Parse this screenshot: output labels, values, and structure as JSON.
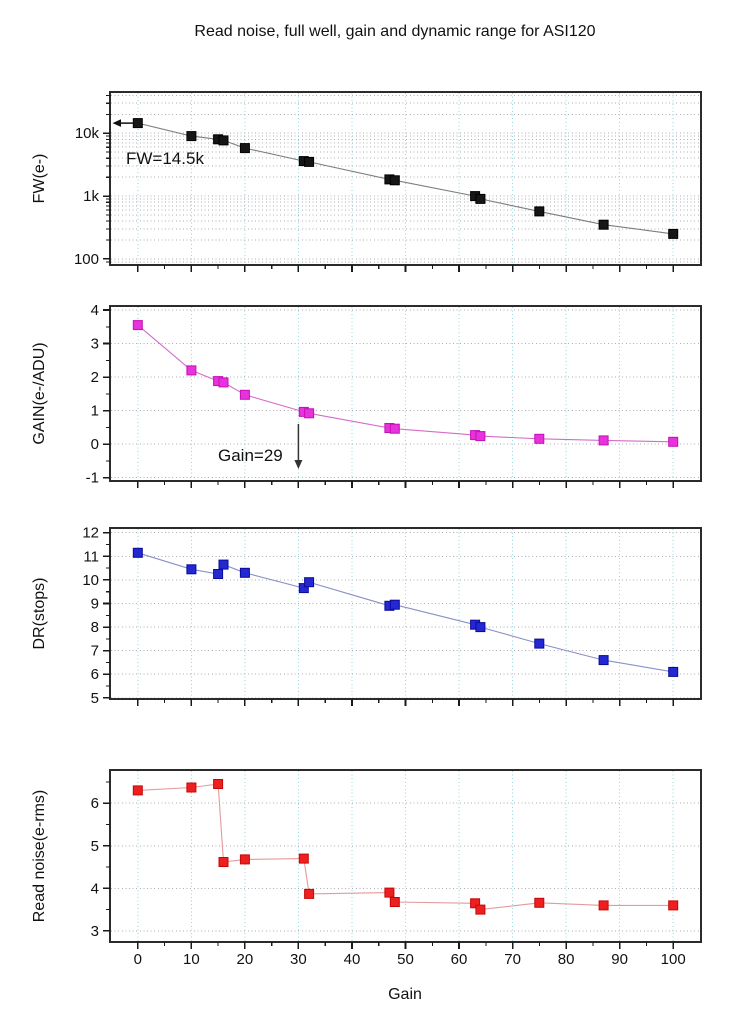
{
  "title": "Read noise, full well, gain and dynamic range for ASI120",
  "chart_data": {
    "type": "scatter",
    "subtype": "four-stacked-panels-shared-x",
    "xlabel": "Gain",
    "xlim": [
      -5.2,
      105.2
    ],
    "x_major_ticks": [
      0,
      10,
      20,
      30,
      40,
      50,
      60,
      70,
      80,
      90,
      100
    ],
    "x_minor_step": 5,
    "grid": true,
    "grid_h_color": "#9a9aa2",
    "grid_v_color": "#8fd2da",
    "x": [
      0,
      10,
      15,
      16,
      20,
      31,
      32,
      47,
      48,
      63,
      64,
      75,
      87,
      100
    ],
    "panels": [
      {
        "name": "full-well",
        "ylabel": "FW(e-)",
        "scale": "log",
        "ylim": [
          80,
          45300
        ],
        "y_ticks": [
          {
            "value": 100,
            "label": "100"
          },
          {
            "value": 1000,
            "label": "1k"
          },
          {
            "value": 10000,
            "label": "10k"
          }
        ],
        "values": [
          14500,
          9000,
          8000,
          7700,
          5800,
          3600,
          3500,
          1840,
          1780,
          1000,
          900,
          570,
          350,
          250
        ],
        "marker_color": "#161616",
        "marker_edge": "#000000",
        "line_color": "#7d7d7d",
        "annotation": {
          "text": "FW=14.5k",
          "points_to_value": 14500
        }
      },
      {
        "name": "gain",
        "ylabel": "GAIN(e-/ADU)",
        "scale": "linear",
        "ylim": [
          -1.1,
          4.12
        ],
        "y_ticks": [
          {
            "value": -1,
            "label": "-1"
          },
          {
            "value": 0,
            "label": "0"
          },
          {
            "value": 1,
            "label": "1"
          },
          {
            "value": 2,
            "label": "2"
          },
          {
            "value": 3,
            "label": "3"
          },
          {
            "value": 4,
            "label": "4"
          }
        ],
        "values": [
          3.55,
          2.2,
          1.88,
          1.84,
          1.47,
          0.96,
          0.92,
          0.48,
          0.46,
          0.27,
          0.24,
          0.16,
          0.11,
          0.07
        ],
        "marker_color": "#e832dc",
        "marker_edge": "#c211b6",
        "line_color": "#d46cc8",
        "annotation": {
          "text": "Gain=29",
          "points_to_gain": 29
        }
      },
      {
        "name": "dynamic-range",
        "ylabel": "DR(stops)",
        "scale": "linear",
        "ylim": [
          4.95,
          12.2
        ],
        "y_ticks": [
          {
            "value": 5,
            "label": "5"
          },
          {
            "value": 6,
            "label": "6"
          },
          {
            "value": 7,
            "label": "7"
          },
          {
            "value": 8,
            "label": "8"
          },
          {
            "value": 9,
            "label": "9"
          },
          {
            "value": 10,
            "label": "10"
          },
          {
            "value": 11,
            "label": "11"
          },
          {
            "value": 12,
            "label": "12"
          }
        ],
        "values": [
          11.15,
          10.45,
          10.25,
          10.65,
          10.3,
          9.65,
          9.9,
          8.9,
          8.95,
          8.1,
          8.0,
          7.3,
          6.6,
          6.1
        ],
        "marker_color": "#2328d2",
        "marker_edge": "#0a0a96",
        "line_color": "#8890c8",
        "annotation": null
      },
      {
        "name": "read-noise",
        "ylabel": "Read noise(e-rms)",
        "scale": "linear",
        "ylim": [
          2.74,
          6.78
        ],
        "y_ticks": [
          {
            "value": 3,
            "label": "3"
          },
          {
            "value": 4,
            "label": "4"
          },
          {
            "value": 5,
            "label": "5"
          },
          {
            "value": 6,
            "label": "6"
          }
        ],
        "values": [
          6.3,
          6.37,
          6.45,
          4.62,
          4.68,
          4.7,
          3.87,
          3.9,
          3.68,
          3.65,
          3.5,
          3.66,
          3.6,
          3.6
        ],
        "marker_color": "#ee1f1f",
        "marker_edge": "#c40808",
        "line_color": "#e39a9a",
        "annotation": null
      }
    ]
  }
}
